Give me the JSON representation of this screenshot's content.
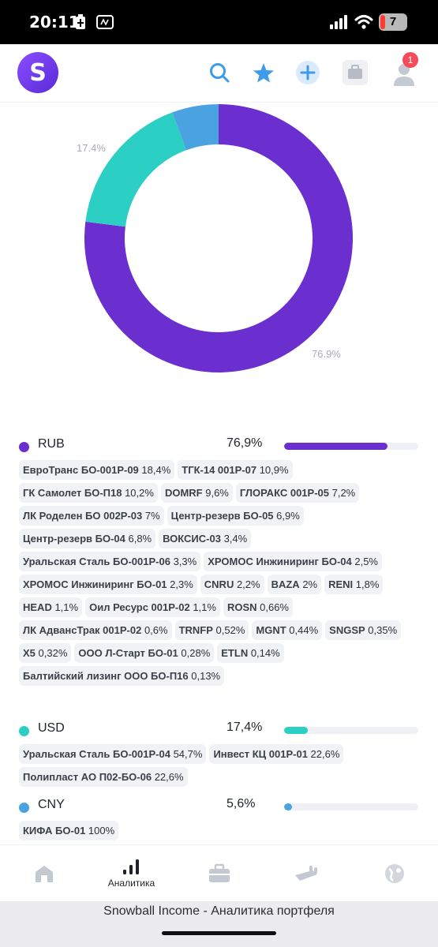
{
  "status_bar": {
    "time": "20:11",
    "battery": "7"
  },
  "header": {
    "logo_letter": "S",
    "notification_count": "1"
  },
  "chart_data": {
    "type": "pie",
    "categories": [
      "RUB",
      "USD",
      "CNY"
    ],
    "values": [
      76.9,
      17.4,
      5.6
    ],
    "colors": [
      "#6b2fd0",
      "#2ccfc4",
      "#4aa3e0"
    ],
    "slice_labels": [
      "76.9%",
      "17.4%",
      ""
    ]
  },
  "groups": [
    {
      "currency": "RUB",
      "percent_label": "76,9%",
      "percent": 76.9,
      "color": "#6b2fd0",
      "items": [
        {
          "name": "ЕвроТранс БО-001Р-09",
          "value": "18,4%"
        },
        {
          "name": "ТГК-14 001Р-07",
          "value": "10,9%"
        },
        {
          "name": "ГК Самолет БО-П18",
          "value": "10,2%"
        },
        {
          "name": "DOMRF",
          "value": "9,6%"
        },
        {
          "name": "ГЛОРАКС 001Р-05",
          "value": "7,2%"
        },
        {
          "name": "ЛК Роделен БО 002Р-03",
          "value": "7%"
        },
        {
          "name": "Центр-резерв БО-05",
          "value": "6,9%"
        },
        {
          "name": "Центр-резерв БО-04",
          "value": "6,8%"
        },
        {
          "name": "ВОКСИС-03",
          "value": "3,4%"
        },
        {
          "name": "Уральская Сталь БО-001Р-06",
          "value": "3,3%"
        },
        {
          "name": "ХРОМОС Инжиниринг БО-04",
          "value": "2,5%"
        },
        {
          "name": "ХРОМОС Инжиниринг БО-01",
          "value": "2,3%"
        },
        {
          "name": "CNRU",
          "value": "2,2%"
        },
        {
          "name": "BAZA",
          "value": "2%"
        },
        {
          "name": "RENI",
          "value": "1,8%"
        },
        {
          "name": "HEAD",
          "value": "1,1%"
        },
        {
          "name": "Оил Ресурс 001Р-02",
          "value": "1,1%"
        },
        {
          "name": "ROSN",
          "value": "0,66%"
        },
        {
          "name": "ЛК АдвансТрак 001Р-02",
          "value": "0,6%"
        },
        {
          "name": "TRNFP",
          "value": "0,52%"
        },
        {
          "name": "MGNT",
          "value": "0,44%"
        },
        {
          "name": "SNGSP",
          "value": "0,35%"
        },
        {
          "name": "X5",
          "value": "0,32%"
        },
        {
          "name": "ООО Л-Старт БО-01",
          "value": "0,28%"
        },
        {
          "name": "ETLN",
          "value": "0,14%"
        },
        {
          "name": "Балтийский лизинг ООО БО-П16",
          "value": "0,13%"
        }
      ]
    },
    {
      "currency": "USD",
      "percent_label": "17,4%",
      "percent": 17.4,
      "color": "#2ccfc4",
      "items": [
        {
          "name": "Уральская Сталь БО-001Р-04",
          "value": "54,7%"
        },
        {
          "name": "Инвест КЦ 001Р-01",
          "value": "22,6%"
        },
        {
          "name": "Полипласт АО П02-БО-06",
          "value": "22,6%"
        }
      ]
    },
    {
      "currency": "CNY",
      "percent_label": "5,6%",
      "percent": 5.6,
      "color": "#4aa3e0",
      "items": [
        {
          "name": "КИФА БО-01",
          "value": "100%"
        }
      ]
    }
  ],
  "bottom_nav": {
    "analytics_label": "Аналитика"
  },
  "browser": {
    "title": "Snowball Income - Аналитика портфеля"
  }
}
